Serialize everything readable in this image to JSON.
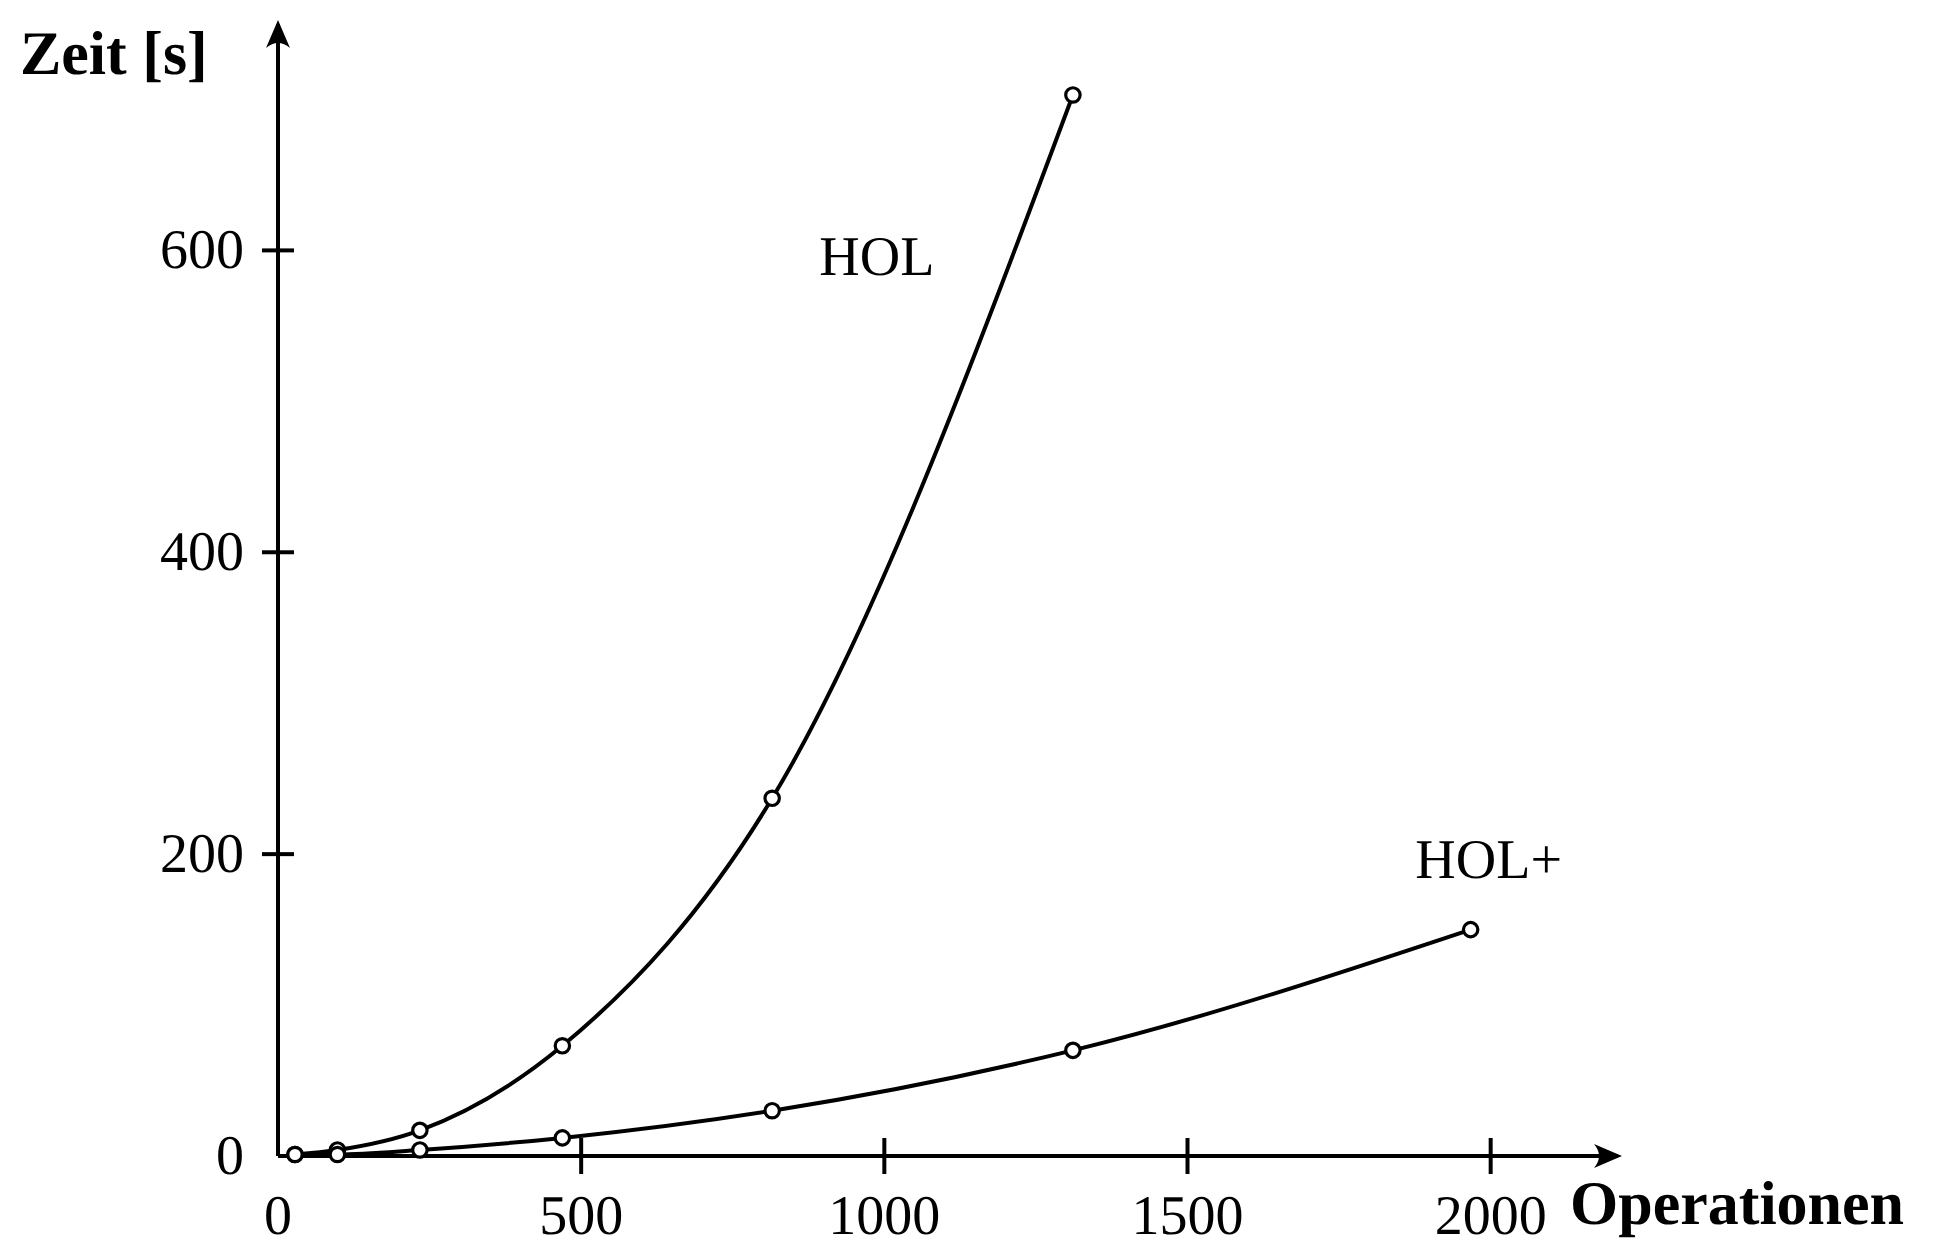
{
  "chart_data": {
    "type": "line",
    "xlabel": "Operationen",
    "ylabel": "Zeit [s]",
    "xlim": [
      0,
      2210
    ],
    "ylim": [
      0,
      750
    ],
    "xticks": [
      0,
      500,
      1000,
      1500,
      2000
    ],
    "yticks": [
      0,
      200,
      400,
      600
    ],
    "marker": "circle",
    "line_style": "solid",
    "series": [
      {
        "name": "HOL",
        "color": "#000000",
        "x": [
          28,
          98,
          234,
          469,
          815,
          1311
        ],
        "values": [
          1,
          4,
          17,
          73,
          237,
          703
        ]
      },
      {
        "name": "HOL+",
        "color": "#000000",
        "x": [
          28,
          98,
          234,
          469,
          815,
          1311,
          1967
        ],
        "values": [
          1,
          1,
          4,
          12,
          30,
          70,
          150
        ]
      }
    ]
  }
}
